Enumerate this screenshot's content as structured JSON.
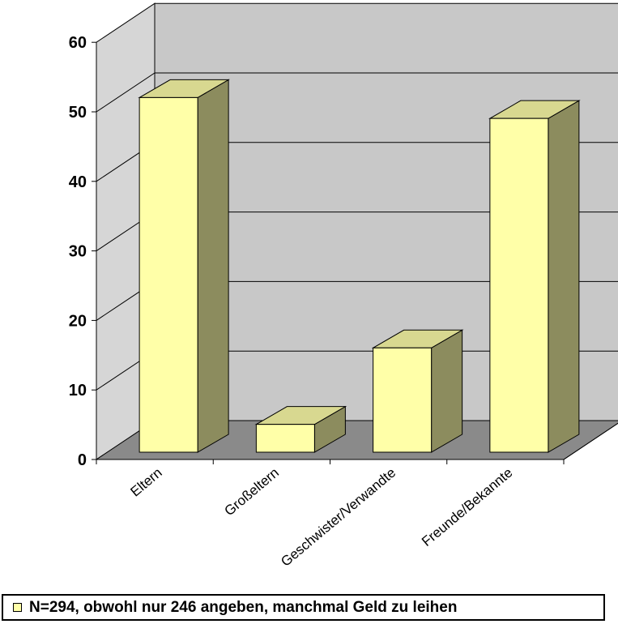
{
  "chart_data": {
    "type": "bar",
    "categories": [
      "Eltern",
      "Großeltern",
      "Geschwister/Verwandte",
      "Freunde/Bekannte"
    ],
    "series": [
      {
        "name": "N=294, obwohl nur 246 angeben, manchmal Geld zu leihen",
        "values": [
          51,
          4,
          15,
          48
        ]
      }
    ],
    "ylim": [
      0,
      60
    ],
    "yticks": [
      "0",
      "10",
      "20",
      "30",
      "40",
      "50",
      "60"
    ],
    "grid": true,
    "legend": "bottom",
    "colors": {
      "bar_front": "#ffffa8",
      "bar_top": "#d8d890",
      "bar_side": "#8c8c5e",
      "back_wall": "#c8c8c8",
      "side_wall": "#d6d6d6",
      "floor": "#8a8a8a"
    }
  }
}
